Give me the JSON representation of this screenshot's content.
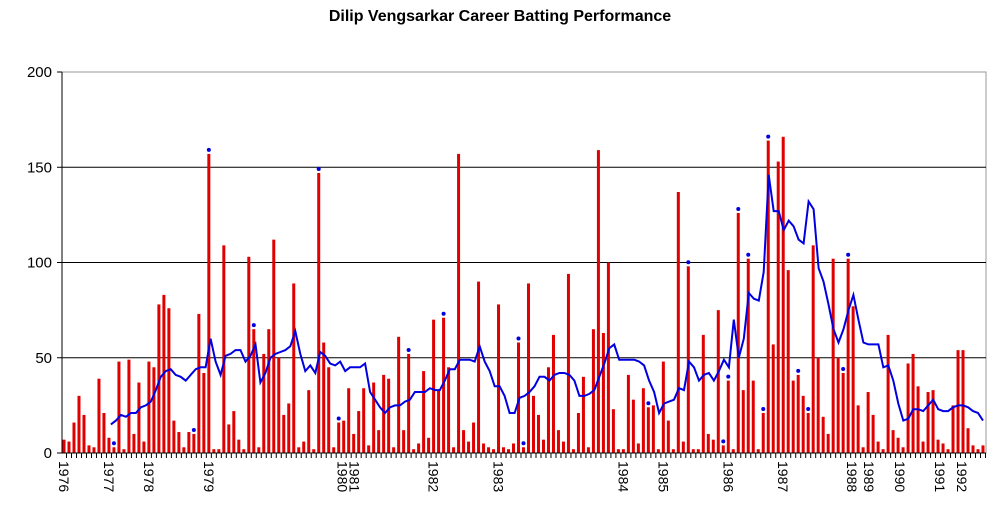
{
  "chart_data": {
    "type": "bar",
    "title": "Dilip Vengsarkar Career Batting Performance",
    "xlabel": "",
    "ylabel": "",
    "ylim": [
      0,
      200
    ],
    "yticks": [
      "0",
      "50",
      "100",
      "150",
      "200"
    ],
    "grid": true,
    "colors": {
      "bars": "#e00000",
      "average_line": "#0000e0",
      "not_out_dots": "#0000e0",
      "grid": "#000000"
    },
    "series": [
      {
        "name": "Innings runs",
        "type": "bar",
        "values": [
          7,
          6,
          16,
          30,
          20,
          4,
          3,
          39,
          21,
          8,
          3,
          48,
          2,
          49,
          10,
          37,
          6,
          48,
          45,
          78,
          83,
          76,
          17,
          11,
          3,
          11,
          10,
          73,
          42,
          157,
          2,
          2,
          109,
          15,
          22,
          7,
          2,
          103,
          65,
          3,
          52,
          65,
          112,
          50,
          20,
          26,
          89,
          3,
          6,
          33,
          2,
          147,
          58,
          45,
          3,
          16,
          17,
          34,
          10,
          22,
          34,
          4,
          37,
          12,
          41,
          39,
          3,
          61,
          12,
          52,
          2,
          5,
          43,
          8,
          70,
          33,
          71,
          45,
          3,
          157,
          12,
          6,
          16,
          90,
          5,
          3,
          2,
          78,
          3,
          2,
          5,
          58,
          3,
          89,
          30,
          20,
          7,
          45,
          62,
          12,
          6,
          94,
          2,
          21,
          40,
          3,
          65,
          159,
          63,
          100,
          23,
          2,
          2,
          41,
          28,
          5,
          34,
          24,
          25,
          2,
          48,
          17,
          2,
          137,
          6,
          98,
          2,
          2,
          62,
          10,
          7,
          75,
          4,
          38,
          2,
          126,
          33,
          102,
          38,
          2,
          21,
          164,
          57,
          153,
          166,
          96,
          38,
          41,
          30,
          21,
          109,
          50,
          19,
          10,
          102,
          50,
          42,
          102,
          77,
          25,
          3,
          32,
          20,
          6,
          2,
          62,
          12,
          8,
          3,
          47,
          52,
          35,
          6,
          32,
          33,
          7,
          5,
          2,
          25,
          54,
          54,
          13,
          4,
          2,
          4
        ]
      },
      {
        "name": "Not out",
        "type": "scatter",
        "indices": [
          10,
          26,
          29,
          38,
          51,
          55,
          69,
          76,
          91,
          92,
          117,
          125,
          132,
          133,
          135,
          137,
          140,
          141,
          147,
          149,
          156,
          157
        ]
      },
      {
        "name": "Career average",
        "type": "line",
        "start_index": 9.4,
        "end_index": 184,
        "values": [
          15,
          17,
          20,
          19,
          21,
          21,
          24,
          25,
          27,
          33,
          40,
          43,
          44,
          41,
          40,
          38,
          41,
          44,
          45,
          45,
          60,
          48,
          41,
          51,
          52,
          54,
          54,
          48,
          51,
          57,
          37,
          42,
          50,
          52,
          53,
          54,
          56,
          64,
          52,
          43,
          46,
          42,
          53,
          51,
          47,
          46,
          48,
          43,
          45,
          45,
          45,
          47,
          32,
          28,
          24,
          21,
          24,
          25,
          25,
          27,
          28,
          32,
          32,
          32,
          34,
          33,
          33,
          38,
          44,
          44,
          49,
          49,
          49,
          48,
          56,
          48,
          43,
          35,
          35,
          30,
          21,
          21,
          29,
          30,
          32,
          35,
          40,
          40,
          38,
          41,
          42,
          42,
          41,
          38,
          30,
          30,
          31,
          33,
          40,
          47,
          55,
          57,
          49,
          49,
          49,
          49,
          48,
          46,
          38,
          32,
          21,
          26,
          27,
          28,
          34,
          33,
          48,
          45,
          38,
          41,
          42,
          38,
          43,
          49,
          45,
          70,
          50,
          60,
          84,
          81,
          80,
          95,
          146,
          127,
          127,
          117,
          122,
          119,
          112,
          110,
          132,
          128,
          97,
          90,
          78,
          65,
          58,
          65,
          75,
          83,
          70,
          58,
          57,
          57,
          57,
          45,
          46,
          38,
          26,
          17,
          18,
          23,
          23,
          22,
          25,
          28,
          23,
          22,
          22,
          24,
          25,
          25,
          24,
          22,
          21,
          17
        ]
      }
    ],
    "x_labels": [
      {
        "label": "1976",
        "index": 0
      },
      {
        "label": "1977",
        "index": 9
      },
      {
        "label": "1978",
        "index": 17
      },
      {
        "label": "1979",
        "index": 29
      },
      {
        "label": "1980",
        "index": 55.8
      },
      {
        "label": "1981",
        "index": 58.2
      },
      {
        "label": "1982",
        "index": 74
      },
      {
        "label": "1983",
        "index": 87
      },
      {
        "label": "1984",
        "index": 112
      },
      {
        "label": "1985",
        "index": 120
      },
      {
        "label": "1986",
        "index": 133
      },
      {
        "label": "1987",
        "index": 144
      },
      {
        "label": "1988",
        "index": 157.8
      },
      {
        "label": "1989",
        "index": 161.2
      },
      {
        "label": "1990",
        "index": 167.4
      },
      {
        "label": "1991",
        "index": 175.4
      },
      {
        "label": "1992",
        "index": 179.8
      }
    ]
  }
}
